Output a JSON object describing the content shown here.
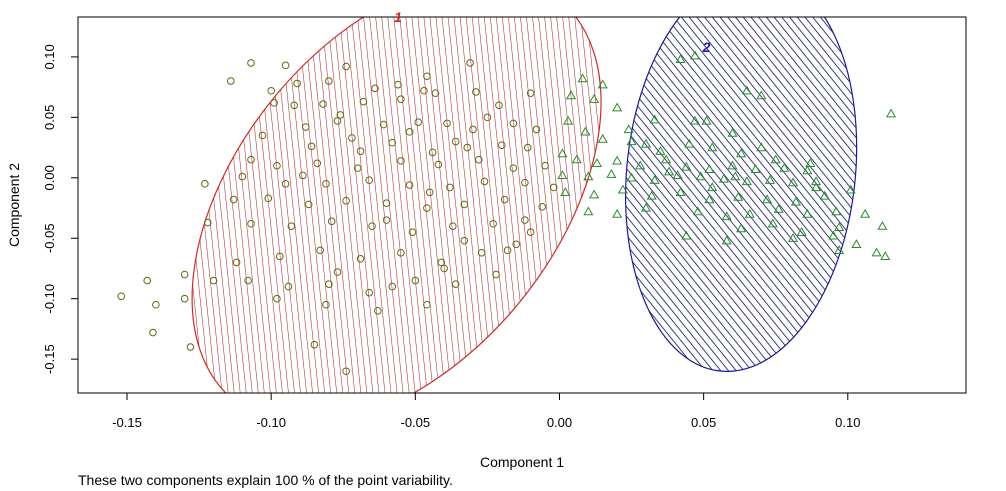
{
  "chart_data": {
    "type": "scatter",
    "xlabel": "Component 1",
    "ylabel": "Component 2",
    "subtitle": "These two components explain 100 % of the point variability.",
    "xlim": [
      -0.167,
      0.141
    ],
    "ylim": [
      -0.178,
      0.133
    ],
    "xticks": [
      -0.15,
      -0.1,
      -0.05,
      0.0,
      0.05,
      0.1
    ],
    "xtick_labels": [
      "-0.15",
      "-0.10",
      "-0.05",
      "0.00",
      "0.05",
      "0.10"
    ],
    "yticks": [
      -0.15,
      -0.1,
      -0.05,
      0.0,
      0.05,
      0.1
    ],
    "ytick_labels": [
      "-0.15",
      "-0.10",
      "-0.05",
      "0.00",
      "0.05",
      "0.10"
    ],
    "grid": false,
    "clusters": [
      {
        "label": "1",
        "ellipse": {
          "cx": -0.0565,
          "cy": -0.0185,
          "rx": 0.0895,
          "ry": 0.1322,
          "angle_deg": 51
        },
        "label_pos": [
          -0.056,
          0.129
        ],
        "fill_color": "#a52a2a",
        "outline_color": "#cc2b2b",
        "label_color": "#cc2b2b",
        "marker": "circle",
        "marker_color": "#66661a",
        "points": [
          [
            -0.107,
            0.095
          ],
          [
            -0.095,
            0.093
          ],
          [
            -0.091,
            0.078
          ],
          [
            -0.074,
            0.092
          ],
          [
            -0.046,
            0.084
          ],
          [
            -0.031,
            0.095
          ],
          [
            -0.114,
            0.08
          ],
          [
            -0.1,
            0.072
          ],
          [
            -0.08,
            0.08
          ],
          [
            -0.064,
            0.074
          ],
          [
            -0.056,
            0.077
          ],
          [
            -0.047,
            0.072
          ],
          [
            -0.092,
            0.06
          ],
          [
            -0.082,
            0.061
          ],
          [
            -0.068,
            0.063
          ],
          [
            -0.055,
            0.065
          ],
          [
            -0.043,
            0.07
          ],
          [
            -0.029,
            0.071
          ],
          [
            -0.021,
            0.06
          ],
          [
            -0.01,
            0.07
          ],
          [
            -0.088,
            0.042
          ],
          [
            -0.077,
            0.047
          ],
          [
            -0.061,
            0.044
          ],
          [
            -0.049,
            0.046
          ],
          [
            -0.039,
            0.045
          ],
          [
            -0.03,
            0.04
          ],
          [
            -0.016,
            0.045
          ],
          [
            -0.008,
            0.04
          ],
          [
            -0.103,
            0.035
          ],
          [
            -0.086,
            0.026
          ],
          [
            -0.072,
            0.033
          ],
          [
            -0.058,
            0.029
          ],
          [
            -0.044,
            0.021
          ],
          [
            -0.032,
            0.025
          ],
          [
            -0.02,
            0.027
          ],
          [
            -0.011,
            0.025
          ],
          [
            -0.107,
            0.015
          ],
          [
            -0.098,
            0.01
          ],
          [
            -0.084,
            0.012
          ],
          [
            -0.07,
            0.008
          ],
          [
            -0.055,
            0.014
          ],
          [
            -0.042,
            0.011
          ],
          [
            -0.028,
            0.015
          ],
          [
            -0.016,
            0.008
          ],
          [
            -0.005,
            0.01
          ],
          [
            -0.123,
            -0.005
          ],
          [
            -0.11,
            0.001
          ],
          [
            -0.095,
            -0.005
          ],
          [
            -0.081,
            -0.005
          ],
          [
            -0.066,
            -0.002
          ],
          [
            -0.052,
            -0.006
          ],
          [
            -0.038,
            -0.008
          ],
          [
            -0.026,
            -0.003
          ],
          [
            -0.012,
            -0.004
          ],
          [
            -0.002,
            -0.008
          ],
          [
            -0.113,
            -0.018
          ],
          [
            -0.101,
            -0.017
          ],
          [
            -0.087,
            -0.022
          ],
          [
            -0.074,
            -0.019
          ],
          [
            -0.06,
            -0.021
          ],
          [
            -0.046,
            -0.025
          ],
          [
            -0.033,
            -0.022
          ],
          [
            -0.019,
            -0.018
          ],
          [
            -0.006,
            -0.024
          ],
          [
            -0.122,
            -0.037
          ],
          [
            -0.107,
            -0.038
          ],
          [
            -0.093,
            -0.04
          ],
          [
            -0.079,
            -0.036
          ],
          [
            -0.065,
            -0.04
          ],
          [
            -0.051,
            -0.045
          ],
          [
            -0.037,
            -0.04
          ],
          [
            -0.023,
            -0.038
          ],
          [
            -0.012,
            -0.035
          ],
          [
            -0.112,
            -0.07
          ],
          [
            -0.097,
            -0.065
          ],
          [
            -0.083,
            -0.06
          ],
          [
            -0.069,
            -0.067
          ],
          [
            -0.055,
            -0.062
          ],
          [
            -0.041,
            -0.07
          ],
          [
            -0.027,
            -0.062
          ],
          [
            -0.015,
            -0.055
          ],
          [
            -0.143,
            -0.085
          ],
          [
            -0.13,
            -0.08
          ],
          [
            -0.12,
            -0.085
          ],
          [
            -0.108,
            -0.085
          ],
          [
            -0.094,
            -0.09
          ],
          [
            -0.08,
            -0.088
          ],
          [
            -0.066,
            -0.095
          ],
          [
            -0.05,
            -0.085
          ],
          [
            -0.036,
            -0.088
          ],
          [
            -0.022,
            -0.08
          ],
          [
            -0.152,
            -0.098
          ],
          [
            -0.14,
            -0.105
          ],
          [
            -0.13,
            -0.1
          ],
          [
            -0.098,
            -0.1
          ],
          [
            -0.081,
            -0.105
          ],
          [
            -0.063,
            -0.11
          ],
          [
            -0.046,
            -0.105
          ],
          [
            -0.141,
            -0.128
          ],
          [
            -0.128,
            -0.14
          ],
          [
            -0.085,
            -0.138
          ],
          [
            -0.074,
            -0.16
          ],
          [
            -0.099,
            0.062
          ],
          [
            -0.076,
            0.052
          ],
          [
            -0.052,
            0.038
          ],
          [
            -0.036,
            0.03
          ],
          [
            -0.025,
            0.05
          ],
          [
            -0.069,
            0.022
          ],
          [
            -0.089,
            0.002
          ],
          [
            -0.06,
            -0.035
          ],
          [
            -0.045,
            -0.012
          ],
          [
            -0.033,
            -0.052
          ],
          [
            -0.077,
            -0.078
          ],
          [
            -0.058,
            -0.09
          ],
          [
            -0.04,
            -0.075
          ],
          [
            -0.018,
            -0.06
          ],
          [
            -0.01,
            -0.045
          ]
        ]
      },
      {
        "label": "2",
        "ellipse": {
          "cx": 0.063,
          "cy": 0.005,
          "rx": 0.0695,
          "ry": 0.0945,
          "angle_deg": 84
        },
        "label_pos": [
          0.051,
          0.104
        ],
        "fill_color": "#0d0d5e",
        "outline_color": "#1a1a99",
        "label_color": "#1c1cb0",
        "marker": "triangle",
        "marker_color": "#2c8a2c",
        "points": [
          [
            0.042,
            0.098
          ],
          [
            0.047,
            0.101
          ],
          [
            0.008,
            0.082
          ],
          [
            0.015,
            0.077
          ],
          [
            0.065,
            0.072
          ],
          [
            0.07,
            0.068
          ],
          [
            0.004,
            0.068
          ],
          [
            0.012,
            0.065
          ],
          [
            0.02,
            0.058
          ],
          [
            0.115,
            0.053
          ],
          [
            0.033,
            0.048
          ],
          [
            0.047,
            0.047
          ],
          [
            0.051,
            0.047
          ],
          [
            0.06,
            0.037
          ],
          [
            0.003,
            0.047
          ],
          [
            0.009,
            0.038
          ],
          [
            0.015,
            0.032
          ],
          [
            0.025,
            0.03
          ],
          [
            0.03,
            0.028
          ],
          [
            0.045,
            0.028
          ],
          [
            0.053,
            0.025
          ],
          [
            0.063,
            0.02
          ],
          [
            0.075,
            0.015
          ],
          [
            0.087,
            0.012
          ],
          [
            0.001,
            0.02
          ],
          [
            0.006,
            0.015
          ],
          [
            0.013,
            0.012
          ],
          [
            0.02,
            0.014
          ],
          [
            0.028,
            0.01
          ],
          [
            0.037,
            0.015
          ],
          [
            0.044,
            0.009
          ],
          [
            0.052,
            0.007
          ],
          [
            0.06,
            0.01
          ],
          [
            0.068,
            0.007
          ],
          [
            0.078,
            0.008
          ],
          [
            0.086,
            0.006
          ],
          [
            0.001,
            0.002
          ],
          [
            0.01,
            0.001
          ],
          [
            0.018,
            0.003
          ],
          [
            0.025,
            0.0
          ],
          [
            0.033,
            -0.002
          ],
          [
            0.041,
            0.002
          ],
          [
            0.049,
            0.001
          ],
          [
            0.057,
            -0.001
          ],
          [
            0.065,
            -0.003
          ],
          [
            0.073,
            -0.002
          ],
          [
            0.081,
            -0.004
          ],
          [
            0.089,
            -0.003
          ],
          [
            0.002,
            -0.012
          ],
          [
            0.012,
            -0.014
          ],
          [
            0.022,
            -0.01
          ],
          [
            0.032,
            -0.015
          ],
          [
            0.042,
            -0.012
          ],
          [
            0.052,
            -0.018
          ],
          [
            0.062,
            -0.016
          ],
          [
            0.072,
            -0.018
          ],
          [
            0.082,
            -0.02
          ],
          [
            0.092,
            -0.015
          ],
          [
            0.101,
            -0.01
          ],
          [
            0.01,
            -0.028
          ],
          [
            0.02,
            -0.03
          ],
          [
            0.03,
            -0.025
          ],
          [
            0.048,
            -0.028
          ],
          [
            0.058,
            -0.032
          ],
          [
            0.066,
            -0.03
          ],
          [
            0.076,
            -0.026
          ],
          [
            0.086,
            -0.03
          ],
          [
            0.096,
            -0.028
          ],
          [
            0.106,
            -0.03
          ],
          [
            0.044,
            -0.048
          ],
          [
            0.063,
            -0.042
          ],
          [
            0.074,
            -0.038
          ],
          [
            0.084,
            -0.045
          ],
          [
            0.095,
            -0.048
          ],
          [
            0.103,
            -0.055
          ],
          [
            0.058,
            -0.052
          ],
          [
            0.097,
            -0.06
          ],
          [
            0.11,
            -0.062
          ],
          [
            0.113,
            -0.065
          ],
          [
            0.081,
            -0.05
          ],
          [
            0.097,
            -0.041
          ],
          [
            0.112,
            -0.04
          ],
          [
            0.038,
            0.005
          ],
          [
            0.07,
            0.025
          ],
          [
            0.089,
            -0.008
          ],
          [
            0.053,
            -0.008
          ],
          [
            0.035,
            0.022
          ],
          [
            0.024,
            0.04
          ],
          [
            0.061,
            0.001
          ]
        ]
      }
    ]
  }
}
